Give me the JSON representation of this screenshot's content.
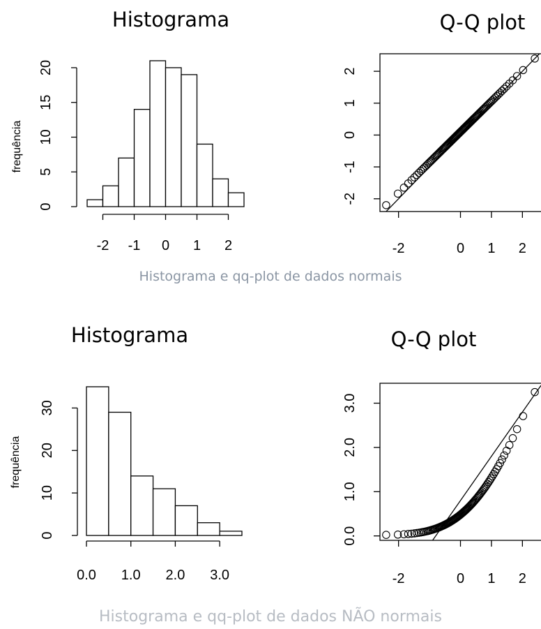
{
  "figures": [
    {
      "caption": "Histograma e qq-plot de dados normais",
      "histogram_title": "Histograma",
      "qq_title": "Q-Q plot",
      "y_axis_label": "frequência"
    },
    {
      "caption": "Histograma e qq-plot de dados NÃO normais",
      "histogram_title": "Histograma",
      "qq_title": "Q-Q plot",
      "y_axis_label": "frequência"
    }
  ],
  "chart_data": [
    {
      "type": "bar",
      "title": "Histograma",
      "ylabel": "frequência",
      "bin_edges": [
        -2.5,
        -2.0,
        -1.5,
        -1.0,
        -0.5,
        0.0,
        0.5,
        1.0,
        1.5,
        2.0,
        2.5
      ],
      "values": [
        1,
        3,
        7,
        14,
        21,
        20,
        19,
        9,
        4,
        2
      ],
      "xticks": [
        "-2",
        "-1",
        "0",
        "1",
        "2"
      ],
      "xtick_values": [
        -2,
        -1,
        0,
        1,
        2
      ],
      "yticks": [
        "0",
        "5",
        "10",
        "15",
        "20"
      ],
      "ytick_values": [
        0,
        5,
        10,
        15,
        20
      ],
      "xlim": [
        -2.5,
        2.5
      ],
      "ylim": [
        0,
        21
      ]
    },
    {
      "type": "scatter",
      "title": "Q-Q plot",
      "theoretical_quantile_range": [
        -2.4,
        2.4
      ],
      "sample_quantile_range": [
        -2.2,
        2.4
      ],
      "n_points": 100,
      "reference_line": {
        "intercept": 0.0,
        "slope": 1.0
      },
      "xticks": [
        "-2",
        "0",
        "1",
        "2"
      ],
      "xtick_values": [
        -2,
        0,
        1,
        2
      ],
      "yticks": [
        "-2",
        "-1",
        "0",
        "1",
        "2"
      ],
      "ytick_values": [
        -2,
        -1,
        0,
        1,
        2
      ],
      "xlim": [
        -2.6,
        2.6
      ],
      "ylim": [
        -2.4,
        2.55
      ]
    },
    {
      "type": "bar",
      "title": "Histograma",
      "ylabel": "frequência",
      "bin_edges": [
        0.0,
        0.5,
        1.0,
        1.5,
        2.0,
        2.5,
        3.0,
        3.5
      ],
      "values": [
        35,
        29,
        14,
        11,
        7,
        3,
        1
      ],
      "xticks": [
        "0.0",
        "1.0",
        "2.0",
        "3.0"
      ],
      "xtick_values": [
        0.0,
        1.0,
        2.0,
        3.0
      ],
      "yticks": [
        "0",
        "10",
        "20",
        "30"
      ],
      "ytick_values": [
        0,
        10,
        20,
        30
      ],
      "xlim": [
        0,
        3.5
      ],
      "ylim": [
        0,
        35
      ]
    },
    {
      "type": "scatter",
      "title": "Q-Q plot",
      "theoretical_quantile_range": [
        -2.4,
        2.4
      ],
      "sample_quantile_range": [
        0.02,
        3.25
      ],
      "n_points": 100,
      "reference_line": {
        "intercept": 0.8,
        "slope": 1.0
      },
      "xticks": [
        "-2",
        "0",
        "1",
        "2"
      ],
      "xtick_values": [
        -2,
        0,
        1,
        2
      ],
      "yticks": [
        "0.0",
        "1.0",
        "2.0",
        "3.0"
      ],
      "ytick_values": [
        0.0,
        1.0,
        2.0,
        3.0
      ],
      "xlim": [
        -2.6,
        2.6
      ],
      "ylim": [
        -0.1,
        3.45
      ]
    }
  ]
}
